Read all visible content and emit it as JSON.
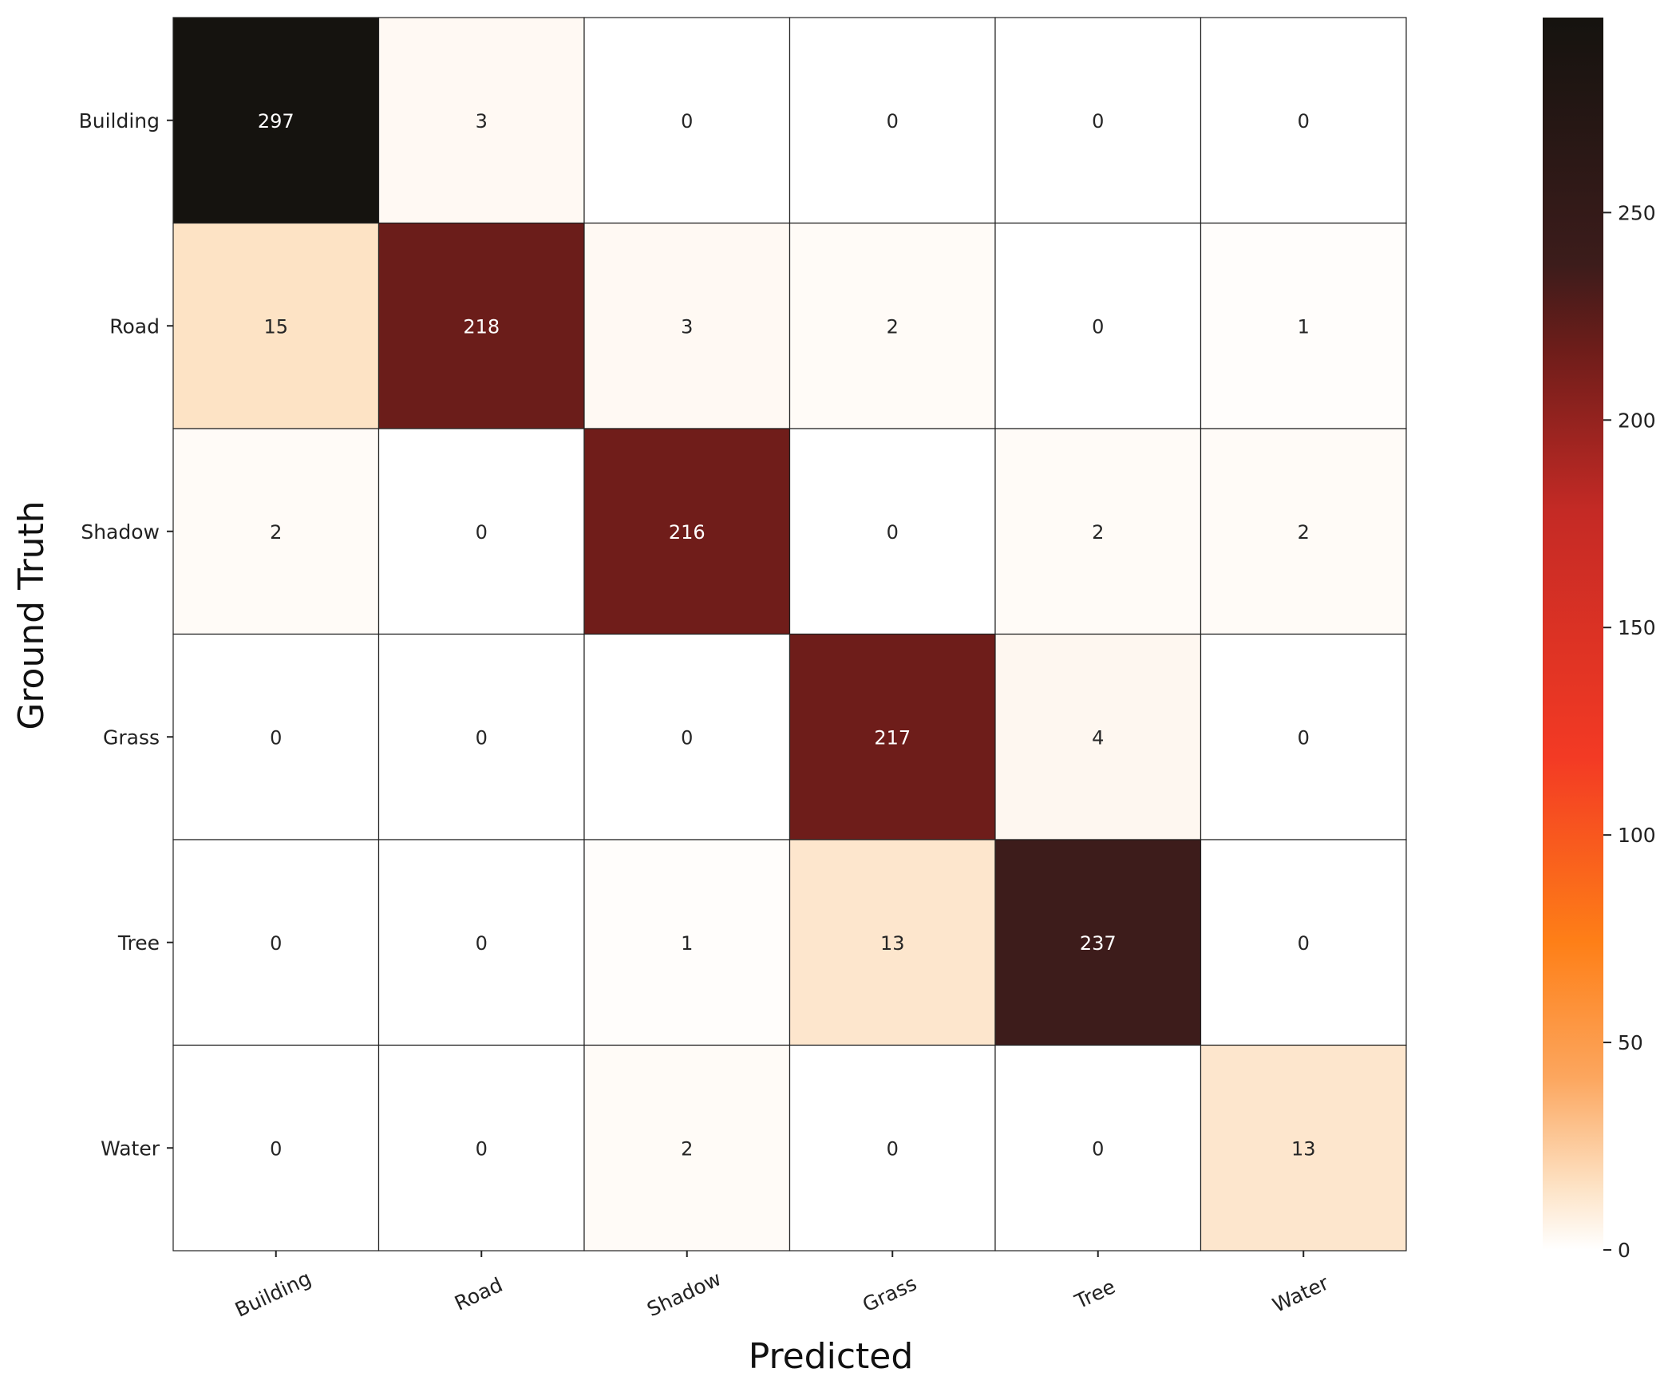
{
  "chart_data": {
    "type": "heatmap",
    "rows": [
      "Building",
      "Road",
      "Shadow",
      "Grass",
      "Tree",
      "Water"
    ],
    "columns": [
      "Building",
      "Road",
      "Shadow",
      "Grass",
      "Tree",
      "Water"
    ],
    "values": [
      [
        297,
        3,
        0,
        0,
        0,
        0
      ],
      [
        15,
        218,
        3,
        2,
        0,
        1
      ],
      [
        2,
        0,
        216,
        0,
        2,
        2
      ],
      [
        0,
        0,
        0,
        217,
        4,
        0
      ],
      [
        0,
        0,
        1,
        13,
        237,
        0
      ],
      [
        0,
        0,
        2,
        0,
        0,
        13
      ]
    ],
    "xlabel": "Predicted",
    "ylabel": "Ground Truth",
    "colorbar": {
      "ticks": [
        0,
        50,
        100,
        150,
        200,
        250
      ],
      "range": [
        0,
        297
      ],
      "colormap": "gist_heat_r"
    },
    "colors": {
      "low": "#ffffff",
      "light": "#fde3c6",
      "mid_light": "#fca65e",
      "mid": "#fe7f17",
      "mid_red": "#f33a24",
      "red": "#c42a25",
      "dark_red": "#6e1d1a",
      "very_dark": "#3c1c1b",
      "high": "#15130f"
    }
  }
}
